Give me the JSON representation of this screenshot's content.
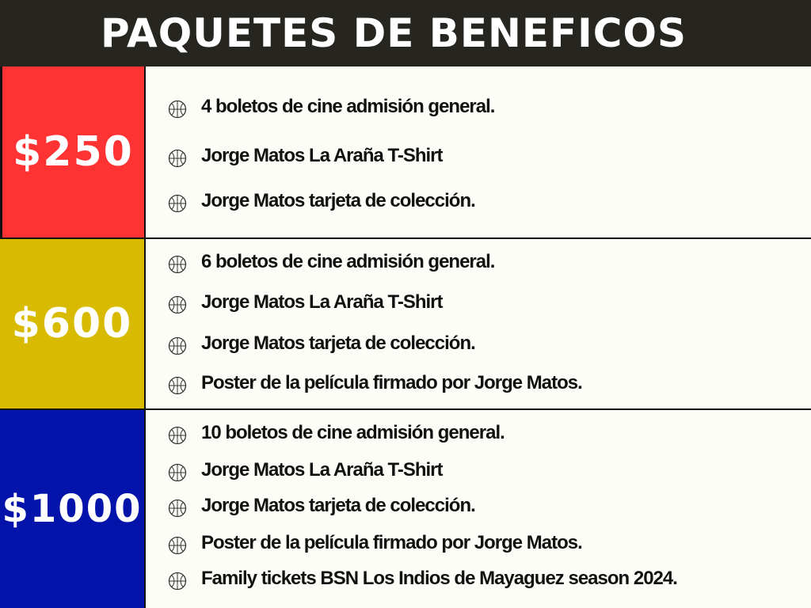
{
  "header": {
    "title": "PAQUETES DE BENEFICOS"
  },
  "tiers": [
    {
      "price": "$250",
      "items": [
        "4 boletos de cine admisión general.",
        "Jorge Matos La Araña T-Shirt",
        "Jorge Matos tarjeta de colección."
      ]
    },
    {
      "price": "$600",
      "items": [
        "6  boletos de cine admisión general.",
        "Jorge Matos La Araña T-Shirt",
        "Jorge Matos tarjeta de colección.",
        "Poster de la película firmado por Jorge Matos."
      ]
    },
    {
      "price": "$1000",
      "items": [
        "10 boletos de cine admisión general.",
        "Jorge Matos La Araña T-Shirt",
        "Jorge Matos tarjeta de colección.",
        "Poster de la película firmado por Jorge Matos.",
        "Family tickets BSN Los Indios de Mayaguez season 2024."
      ]
    }
  ],
  "colors": {
    "header_bg": "#262520",
    "tier1": "#ff3333",
    "tier2": "#d8bb00",
    "tier3": "#0414aa",
    "list_bg": "#fdfdf7"
  },
  "icons": {
    "bullet": "basketball-icon"
  }
}
